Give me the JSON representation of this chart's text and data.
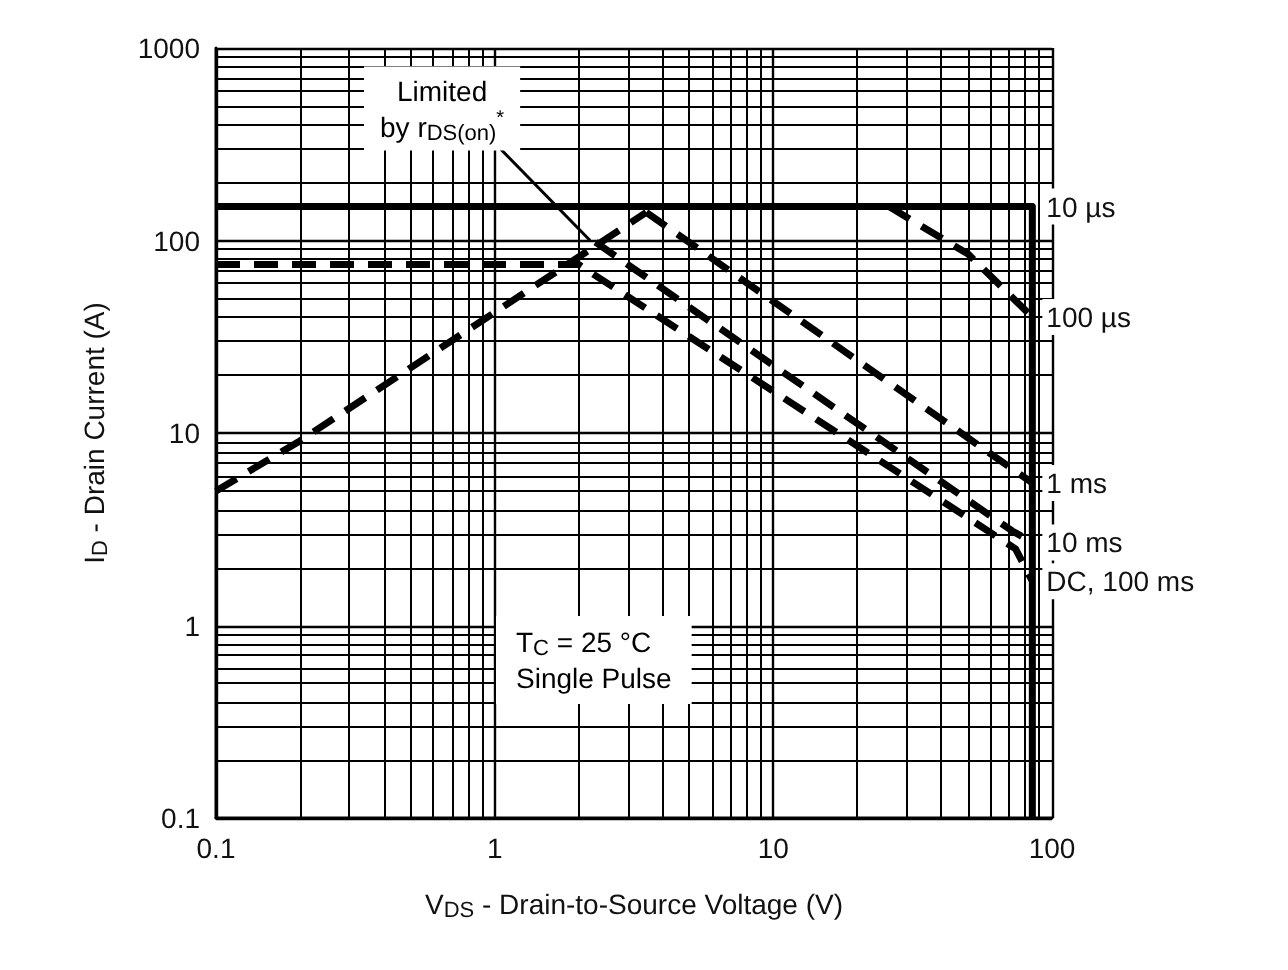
{
  "chart_data": {
    "type": "line",
    "xlabel": "V$_{DS}$ - Drain-to-Source Voltage (V)",
    "ylabel": "I$_{D}$ - Drain Current (A)",
    "log": "xy",
    "xlim": [
      0.1,
      100
    ],
    "ylim": [
      0.1,
      1000
    ],
    "xticks": [
      0.1,
      1,
      10,
      100
    ],
    "yticks": [
      0.1,
      1,
      10,
      100,
      1000
    ],
    "grid": true,
    "marker": "none",
    "series": [
      {
        "name": "10 µs",
        "color": "#000000",
        "line_style": "solid",
        "x": [
          0.1,
          85,
          85
        ],
        "values": [
          150,
          150,
          0.1
        ]
      },
      {
        "name": "100 µs",
        "color": "#000000",
        "line_style": "dashed",
        "x": [
          26,
          50,
          85
        ],
        "values": [
          150,
          85,
          40
        ]
      },
      {
        "name": "1 ms",
        "color": "#000000",
        "line_style": "dashed",
        "x": [
          3.5,
          85
        ],
        "values": [
          140,
          5.5
        ]
      },
      {
        "name": "10 ms",
        "color": "#000000",
        "line_style": "dashed",
        "x": [
          2.3,
          72,
          85
        ],
        "values": [
          98,
          3.1,
          2.7
        ]
      },
      {
        "name": "DC, 100 ms",
        "color": "#000000",
        "line_style": "dashed",
        "x": [
          0.1,
          2.0,
          74,
          85
        ],
        "values": [
          75,
          75,
          2.5,
          1.7
        ]
      },
      {
        "color": "#000000",
        "line_style": "dashed",
        "x": [
          0.1,
          0.2,
          3.5
        ],
        "values": [
          5,
          9.1,
          140
        ]
      }
    ],
    "annotations": [
      {
        "text": "Limited\nby r$_{DS(on)}$$^{*}$",
        "x": 2.2,
        "y": 100
      },
      "T$_{C}$ = 25 °C\nSingle Pulse"
    ]
  }
}
